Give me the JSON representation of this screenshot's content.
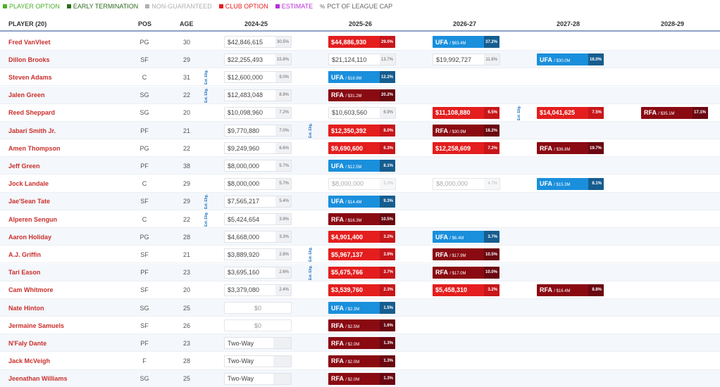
{
  "colors": {
    "player_option": "#4caf2a",
    "early_termination": "#2e6b1e",
    "non_guaranteed": "#b0b0b0",
    "club_option": "#e41e1e",
    "estimate": "#b82fd6",
    "ufa": "#1a8fdc",
    "rfa": "#8a0a12"
  },
  "legend": [
    {
      "label": "PLAYER OPTION",
      "color": "#4caf2a"
    },
    {
      "label": "EARLY TERMINATION",
      "color": "#2e6b1e"
    },
    {
      "label": "NON-GUARANTEED",
      "color": "#b0b0b0"
    },
    {
      "label": "CLUB OPTION",
      "color": "#e41e1e"
    },
    {
      "label": "ESTIMATE",
      "color": "#b82fd6"
    }
  ],
  "legend_pct": "PCT OF LEAGUE CAP",
  "headers": {
    "player": "PLAYER (20)",
    "pos": "POS",
    "age": "AGE",
    "y1": "2024-25",
    "y2": "2025-26",
    "y3": "2026-27",
    "y4": "2027-28",
    "y5": "2028-29"
  },
  "ex_elig_label": "Ext. Elig.",
  "players": [
    {
      "name": "Fred VanVleet",
      "pos": "PG",
      "age": "30",
      "y1": {
        "t": "gt",
        "amt": "$42,846,615",
        "pct": "30.5%"
      },
      "y2": {
        "t": "club",
        "amt": "$44,886,930",
        "pct": "29.0%"
      },
      "y3": {
        "t": "ufa",
        "tag": "UFA",
        "sub": "/ $63.4M",
        "pct": "37.2%"
      }
    },
    {
      "name": "Dillon Brooks",
      "pos": "SF",
      "age": "29",
      "y1": {
        "t": "gt",
        "amt": "$22,255,493",
        "pct": "15.8%"
      },
      "y2": {
        "t": "gt",
        "amt": "$21,124,110",
        "pct": "13.7%"
      },
      "y3": {
        "t": "gt",
        "amt": "$19,992,727",
        "pct": "11.8%"
      },
      "y4": {
        "t": "ufa",
        "tag": "UFA",
        "sub": "/ $30.0M",
        "pct": "16.0%"
      }
    },
    {
      "name": "Steven Adams",
      "pos": "C",
      "age": "31",
      "ext": true,
      "y1": {
        "t": "gt",
        "amt": "$12,600,000",
        "pct": "9.0%"
      },
      "y2": {
        "t": "ufa",
        "tag": "UFA",
        "sub": "/ $18.9M",
        "pct": "12.2%"
      }
    },
    {
      "name": "Jalen Green",
      "pos": "SG",
      "age": "22",
      "ext": true,
      "y1": {
        "t": "gt",
        "amt": "$12,483,048",
        "pct": "8.9%"
      },
      "y2": {
        "t": "rfa",
        "tag": "RFA",
        "sub": "/ $31.2M",
        "pct": "20.2%"
      }
    },
    {
      "name": "Reed Sheppard",
      "pos": "SG",
      "age": "20",
      "ext3": true,
      "y1": {
        "t": "gt",
        "amt": "$10,098,960",
        "pct": "7.2%"
      },
      "y2": {
        "t": "gt",
        "amt": "$10,603,560",
        "pct": "6.9%"
      },
      "y3": {
        "t": "club",
        "amt": "$11,108,880",
        "pct": "6.5%"
      },
      "y4": {
        "t": "club",
        "amt": "$14,041,625",
        "pct": "7.5%"
      },
      "y5": {
        "t": "rfa",
        "tag": "RFA",
        "sub": "/ $35.1M",
        "pct": "17.1%"
      }
    },
    {
      "name": "Jabari Smith Jr.",
      "pos": "PF",
      "age": "21",
      "ext2": true,
      "y1": {
        "t": "gt",
        "amt": "$9,770,880",
        "pct": "7.0%"
      },
      "y2": {
        "t": "club",
        "amt": "$12,350,392",
        "pct": "8.0%"
      },
      "y3": {
        "t": "rfa",
        "tag": "RFA",
        "sub": "/ $30.9M",
        "pct": "18.2%"
      }
    },
    {
      "name": "Amen Thompson",
      "pos": "PG",
      "age": "22",
      "y1": {
        "t": "gt",
        "amt": "$9,249,960",
        "pct": "6.6%"
      },
      "y2": {
        "t": "club",
        "amt": "$9,690,600",
        "pct": "6.3%"
      },
      "y3": {
        "t": "club",
        "amt": "$12,258,609",
        "pct": "7.2%"
      },
      "y4": {
        "t": "rfa",
        "tag": "RFA",
        "sub": "/ $36.8M",
        "pct": "19.7%"
      }
    },
    {
      "name": "Jeff Green",
      "pos": "PF",
      "age": "38",
      "y1": {
        "t": "gt",
        "amt": "$8,000,000",
        "pct": "5.7%"
      },
      "y2": {
        "t": "ufa",
        "tag": "UFA",
        "sub": "/ $12.5M",
        "pct": "8.1%"
      }
    },
    {
      "name": "Jock Landale",
      "pos": "C",
      "age": "29",
      "y1": {
        "t": "gt",
        "amt": "$8,000,000",
        "pct": "5.7%"
      },
      "y2": {
        "t": "ng",
        "amt": "$8,000,000",
        "pct": "5.2%"
      },
      "y3": {
        "t": "ng",
        "amt": "$8,000,000",
        "pct": "4.7%"
      },
      "y4": {
        "t": "ufa",
        "tag": "UFA",
        "sub": "/ $15.3M",
        "pct": "8.1%"
      }
    },
    {
      "name": "Jae'Sean Tate",
      "pos": "SF",
      "age": "29",
      "ext": true,
      "y1": {
        "t": "gt",
        "amt": "$7,565,217",
        "pct": "5.4%"
      },
      "y2": {
        "t": "ufa",
        "tag": "UFA",
        "sub": "/ $14.4M",
        "pct": "9.3%"
      }
    },
    {
      "name": "Alperen Sengun",
      "pos": "C",
      "age": "22",
      "ext": true,
      "y1": {
        "t": "gt",
        "amt": "$5,424,654",
        "pct": "3.9%"
      },
      "y2": {
        "t": "rfa",
        "tag": "RFA",
        "sub": "/ $16.3M",
        "pct": "10.5%"
      }
    },
    {
      "name": "Aaron Holiday",
      "pos": "PG",
      "age": "28",
      "y1": {
        "t": "gt",
        "amt": "$4,668,000",
        "pct": "3.3%"
      },
      "y2": {
        "t": "club",
        "amt": "$4,901,400",
        "pct": "3.2%"
      },
      "y3": {
        "t": "ufa",
        "tag": "UFA",
        "sub": "/ $6.4M",
        "pct": "3.7%"
      }
    },
    {
      "name": "A.J. Griffin",
      "pos": "SF",
      "age": "21",
      "ext2": true,
      "y1": {
        "t": "gt",
        "amt": "$3,889,920",
        "pct": "2.8%"
      },
      "y2": {
        "t": "club",
        "amt": "$5,967,137",
        "pct": "3.9%"
      },
      "y3": {
        "t": "rfa",
        "tag": "RFA",
        "sub": "/ $17.9M",
        "pct": "10.5%"
      }
    },
    {
      "name": "Tari Eason",
      "pos": "PF",
      "age": "23",
      "ext2": true,
      "y1": {
        "t": "gt",
        "amt": "$3,695,160",
        "pct": "2.6%"
      },
      "y2": {
        "t": "club",
        "amt": "$5,675,766",
        "pct": "3.7%"
      },
      "y3": {
        "t": "rfa",
        "tag": "RFA",
        "sub": "/ $17.0M",
        "pct": "10.0%"
      }
    },
    {
      "name": "Cam Whitmore",
      "pos": "SF",
      "age": "20",
      "y1": {
        "t": "gt",
        "amt": "$3,379,080",
        "pct": "2.4%"
      },
      "y2": {
        "t": "club",
        "amt": "$3,539,760",
        "pct": "2.3%"
      },
      "y3": {
        "t": "club",
        "amt": "$5,458,310",
        "pct": "3.2%"
      },
      "y4": {
        "t": "rfa",
        "tag": "RFA",
        "sub": "/ $16.4M",
        "pct": "8.8%"
      }
    },
    {
      "name": "Nate Hinton",
      "pos": "SG",
      "age": "25",
      "y1": {
        "t": "zero",
        "amt": "$0"
      },
      "y2": {
        "t": "ufa",
        "tag": "UFA",
        "sub": "/ $2.3M",
        "pct": "1.5%"
      }
    },
    {
      "name": "Jermaine Samuels",
      "pos": "SF",
      "age": "26",
      "y1": {
        "t": "zero",
        "amt": "$0"
      },
      "y2": {
        "t": "rfa",
        "tag": "RFA",
        "sub": "/ $2.5M",
        "pct": "1.6%"
      }
    },
    {
      "name": "N'Faly Dante",
      "pos": "PF",
      "age": "23",
      "y1": {
        "t": "twoway",
        "amt": "Two-Way"
      },
      "y2": {
        "t": "rfa",
        "tag": "RFA",
        "sub": "/ $2.0M",
        "pct": "1.3%"
      }
    },
    {
      "name": "Jack McVeigh",
      "pos": "F",
      "age": "28",
      "y1": {
        "t": "twoway",
        "amt": "Two-Way"
      },
      "y2": {
        "t": "rfa",
        "tag": "RFA",
        "sub": "/ $2.0M",
        "pct": "1.3%"
      }
    },
    {
      "name": "Jeenathan Williams",
      "pos": "SG",
      "age": "25",
      "y1": {
        "t": "twoway",
        "amt": "Two-Way"
      },
      "y2": {
        "t": "rfa",
        "tag": "RFA",
        "sub": "/ $2.0M",
        "pct": "1.3%"
      }
    }
  ]
}
